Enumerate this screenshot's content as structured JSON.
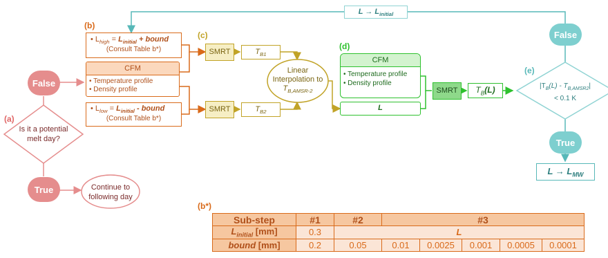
{
  "labels": {
    "a": "(a)",
    "b": "(b)",
    "c": "(c)",
    "d": "(d)",
    "e": "(e)",
    "b_star": "(b*)"
  },
  "section_a": {
    "false_label": "False",
    "decision": [
      "Is it a potential",
      "melt day?"
    ],
    "true_label": "True",
    "continue": [
      "Continue to",
      "following day"
    ]
  },
  "section_b": {
    "l_high_pre": "• L",
    "l_high_sub": "high",
    "l_high_eq": " = ",
    "l_high_L": "L",
    "l_high_init": "initial",
    "l_high_tail": " + bound",
    "consult_high": "(Consult Table b*)",
    "cfm_title": "CFM",
    "cfm_items": [
      "• Temperature profile",
      "• Density profile"
    ],
    "l_low_pre": "• L",
    "l_low_sub": "low",
    "l_low_eq": " = ",
    "l_low_L": "L",
    "l_low_init": "initial",
    "l_low_tail": " - bound",
    "consult_low": "(Consult Table b*)"
  },
  "section_c": {
    "smrt": "SMRT",
    "tb": "T",
    "tb1_sub": "B1",
    "tb2_sub": "B2",
    "interp": [
      "Linear",
      "Interpolation to"
    ],
    "interp_T": "T",
    "interp_sub": "B,AMSR-2"
  },
  "section_d": {
    "cfm_title": "CFM",
    "cfm_items": [
      "• Temperature profile",
      "• Density profile"
    ],
    "L": "L",
    "smrt": "SMRT",
    "tb_T": "T",
    "tb_sub": "B",
    "tb_arg": "(L)"
  },
  "section_e": {
    "top_arrow_L": "L → L",
    "top_arrow_sub": "initial",
    "false_label": "False",
    "cond_line1_pre": "|T",
    "cond_line1_sub": "B",
    "cond_line1_mid": "(L) - T",
    "cond_line1_sub2": "B,AMSR2",
    "cond_line1_post": "|",
    "cond_line2": "< 0.1 K",
    "true_label": "True",
    "final_L": "L → L",
    "final_sub": "MW"
  },
  "table_b": {
    "header": [
      "Sub-step",
      "#1",
      "#2",
      "#3"
    ],
    "row1_label_L": "L",
    "row1_label_sub": "initial",
    "row1_label_unit": " [mm]",
    "row1_values": [
      "0.3",
      "L"
    ],
    "row2_label": "bound",
    "row2_unit": " [mm]",
    "row2_values": [
      "0.2",
      "0.05",
      "0.01",
      "0.0025",
      "0.001",
      "0.0005",
      "0.0001"
    ]
  },
  "colors": {
    "red": "#e06666",
    "orange": "#d96a1a",
    "yellow": "#c1a327",
    "green": "#2ec12e",
    "teal": "#57b8b8"
  }
}
